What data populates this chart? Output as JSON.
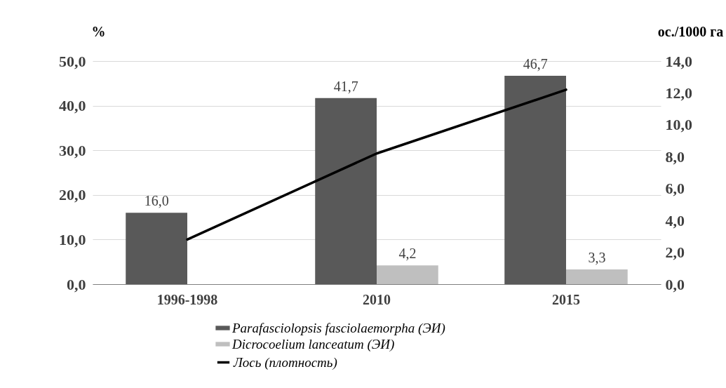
{
  "chart_data": {
    "type": "bar",
    "categories": [
      "1996-1998",
      "2010",
      "2015"
    ],
    "series": [
      {
        "name": "Parafasciolopsis fasciolaemorpha (ЭИ)",
        "color": "#595959",
        "values": [
          16.0,
          41.7,
          46.7
        ],
        "value_labels": [
          "16,0",
          "41,7",
          "46,7"
        ]
      },
      {
        "name": "Dicrocoelium lanceatum (ЭИ)",
        "color": "#bfbfbf",
        "values": [
          null,
          4.2,
          3.3
        ],
        "value_labels": [
          null,
          "4,2",
          "3,3"
        ]
      },
      {
        "name": "Лось (плотность)",
        "type": "line",
        "axis": "y2",
        "color": "#000000",
        "values": [
          2.8,
          8.2,
          12.2
        ]
      }
    ],
    "ylabel": "%",
    "y2label": "ос./1000 га",
    "ylim": [
      0,
      50
    ],
    "yticks": [
      {
        "value": 0,
        "label": "0,0"
      },
      {
        "value": 10,
        "label": "10,0"
      },
      {
        "value": 20,
        "label": "20,0"
      },
      {
        "value": 30,
        "label": "30,0"
      },
      {
        "value": 40,
        "label": "40,0"
      },
      {
        "value": 50,
        "label": "50,0"
      }
    ],
    "y2lim": [
      0,
      14
    ],
    "y2ticks": [
      {
        "value": 0,
        "label": "0,0"
      },
      {
        "value": 2,
        "label": "2,0"
      },
      {
        "value": 4,
        "label": "4,0"
      },
      {
        "value": 6,
        "label": "6,0"
      },
      {
        "value": 8,
        "label": "8,0"
      },
      {
        "value": 10,
        "label": "10,0"
      },
      {
        "value": 12,
        "label": "12,0"
      },
      {
        "value": 14,
        "label": "14,0"
      }
    ],
    "grid": "y",
    "legend": "bottom"
  }
}
